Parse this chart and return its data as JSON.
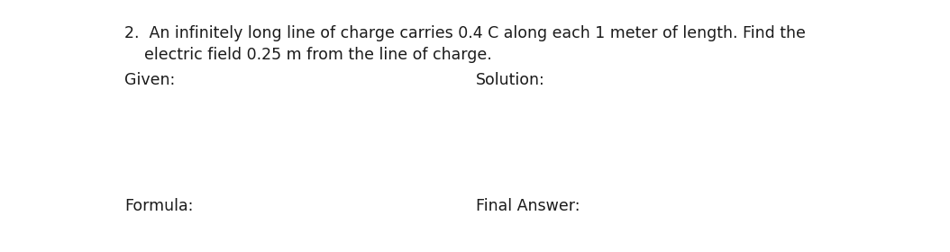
{
  "background_color": "#ffffff",
  "line1": "2.  An infinitely long line of charge carries 0.4 C along each 1 meter of length. Find the",
  "line2": "    electric field 0.25 m from the line of charge.",
  "given_label": "Given:",
  "solution_label": "Solution:",
  "formula_label": "Formula:",
  "final_answer_label": "Final Answer:",
  "text_color": "#1a1a1a",
  "font_size_body": 12.5,
  "fig_width": 10.54,
  "fig_height": 2.8,
  "dpi": 100
}
